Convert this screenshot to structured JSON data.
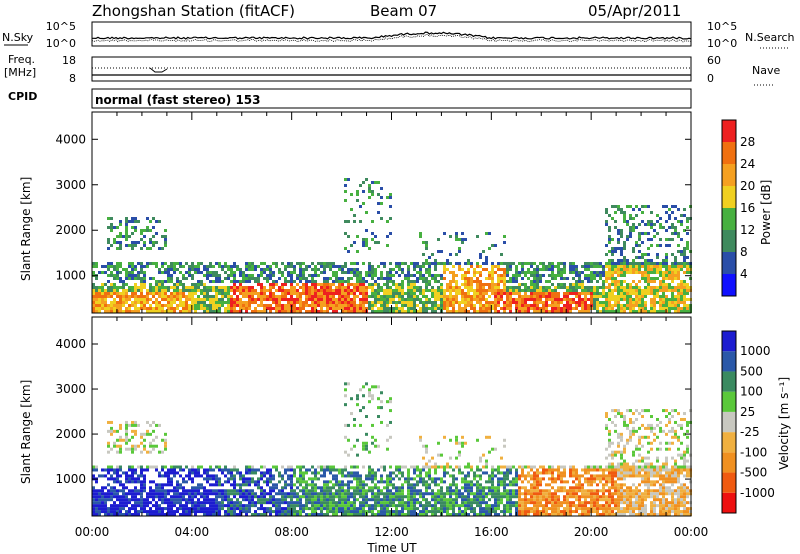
{
  "header": {
    "station": "Zhongshan Station (fitACF)",
    "beam": "Beam 07",
    "date": "05/Apr/2011"
  },
  "noise_panel": {
    "left_label": "N.Sky",
    "left_ticks": [
      "10^5",
      "10^0"
    ],
    "right_ticks": [
      "10^5",
      "10^0"
    ],
    "right_label": "N.Search"
  },
  "freq_panel": {
    "left_label_1": "Freq.",
    "left_label_2": "[MHz]",
    "left_ticks": [
      "18",
      "8"
    ],
    "right_ticks": [
      "60",
      "0"
    ],
    "right_label": "Nave"
  },
  "cpid": {
    "label": "CPID",
    "text": "normal (fast stereo) 153"
  },
  "x_axis": {
    "ticks": [
      "00:00",
      "04:00",
      "08:00",
      "12:00",
      "16:00",
      "20:00",
      "00:00"
    ],
    "label": "Time UT"
  },
  "y_axis": {
    "label": "Slant Range [km]",
    "ticks": [
      "1000",
      "2000",
      "3000",
      "4000"
    ]
  },
  "colors": {
    "power_scale": [
      "#1010ff",
      "#2a4ea8",
      "#3f8a5e",
      "#47b040",
      "#f0d020",
      "#f5a020",
      "#f07010",
      "#ee2020"
    ],
    "velocity_scale": [
      "#ee1010",
      "#f05a10",
      "#f09020",
      "#f0b040",
      "#c8c8c0",
      "#5ac83a",
      "#3a8a60",
      "#2a58a8",
      "#1c1cd0"
    ]
  },
  "chart_data": [
    {
      "type": "heatmap",
      "name": "power",
      "colorbar_label": "Power [dB]",
      "colorbar_ticks": [
        "28",
        "24",
        "20",
        "16",
        "12",
        "8",
        "4"
      ],
      "clim": [
        0,
        32
      ],
      "xlim_hours": [
        0,
        24
      ],
      "ylim": [
        180,
        4600
      ]
    },
    {
      "type": "heatmap",
      "name": "velocity",
      "colorbar_label": "Velocity [m s⁻¹]",
      "colorbar_ticks": [
        "1000",
        "500",
        "100",
        "25",
        "-25",
        "-100",
        "-500",
        "-1000"
      ],
      "xlim_hours": [
        0,
        24
      ],
      "ylim": [
        180,
        4600
      ]
    }
  ]
}
